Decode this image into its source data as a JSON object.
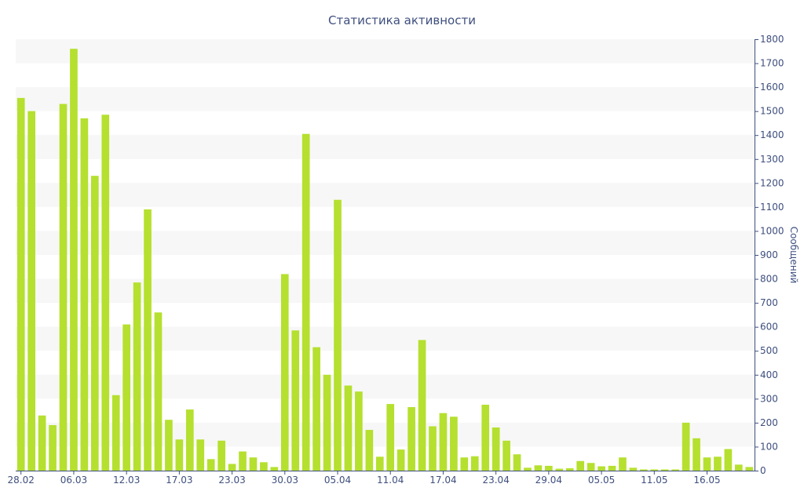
{
  "chart_data": {
    "type": "bar",
    "title": "Статистика активности",
    "xlabel": "",
    "ylabel": "Сообщений",
    "ylim": [
      0,
      1800
    ],
    "y_ticks": [
      0,
      100,
      200,
      300,
      400,
      500,
      600,
      700,
      800,
      900,
      1000,
      1100,
      1200,
      1300,
      1400,
      1500,
      1600,
      1700,
      1800
    ],
    "y_axis_side": "right",
    "grid": "alternating-bands",
    "bar_color": "#b5e02f",
    "band_color": "#f7f7f7",
    "text_color": "#3e4f7e",
    "x_tick_labels": [
      {
        "index": 0,
        "label": "28.02"
      },
      {
        "index": 5,
        "label": "06.03"
      },
      {
        "index": 10,
        "label": "12.03"
      },
      {
        "index": 15,
        "label": "17.03"
      },
      {
        "index": 20,
        "label": "23.03"
      },
      {
        "index": 25,
        "label": "30.03"
      },
      {
        "index": 30,
        "label": "05.04"
      },
      {
        "index": 35,
        "label": "11.04"
      },
      {
        "index": 40,
        "label": "17.04"
      },
      {
        "index": 45,
        "label": "23.04"
      },
      {
        "index": 50,
        "label": "29.04"
      },
      {
        "index": 55,
        "label": "05.05"
      },
      {
        "index": 60,
        "label": "11.05"
      },
      {
        "index": 65,
        "label": "16.05"
      }
    ],
    "values": [
      1555,
      1500,
      230,
      190,
      1530,
      1760,
      1470,
      1230,
      1485,
      315,
      610,
      785,
      1090,
      660,
      212,
      130,
      255,
      130,
      48,
      125,
      28,
      80,
      55,
      35,
      15,
      820,
      585,
      1405,
      515,
      400,
      1130,
      355,
      330,
      170,
      58,
      278,
      88,
      265,
      545,
      185,
      240,
      225,
      55,
      60,
      275,
      180,
      125,
      68,
      12,
      22,
      20,
      8,
      10,
      40,
      32,
      18,
      20,
      55,
      12,
      5,
      5,
      5,
      5,
      200,
      135,
      55,
      58,
      90,
      25,
      15
    ]
  }
}
